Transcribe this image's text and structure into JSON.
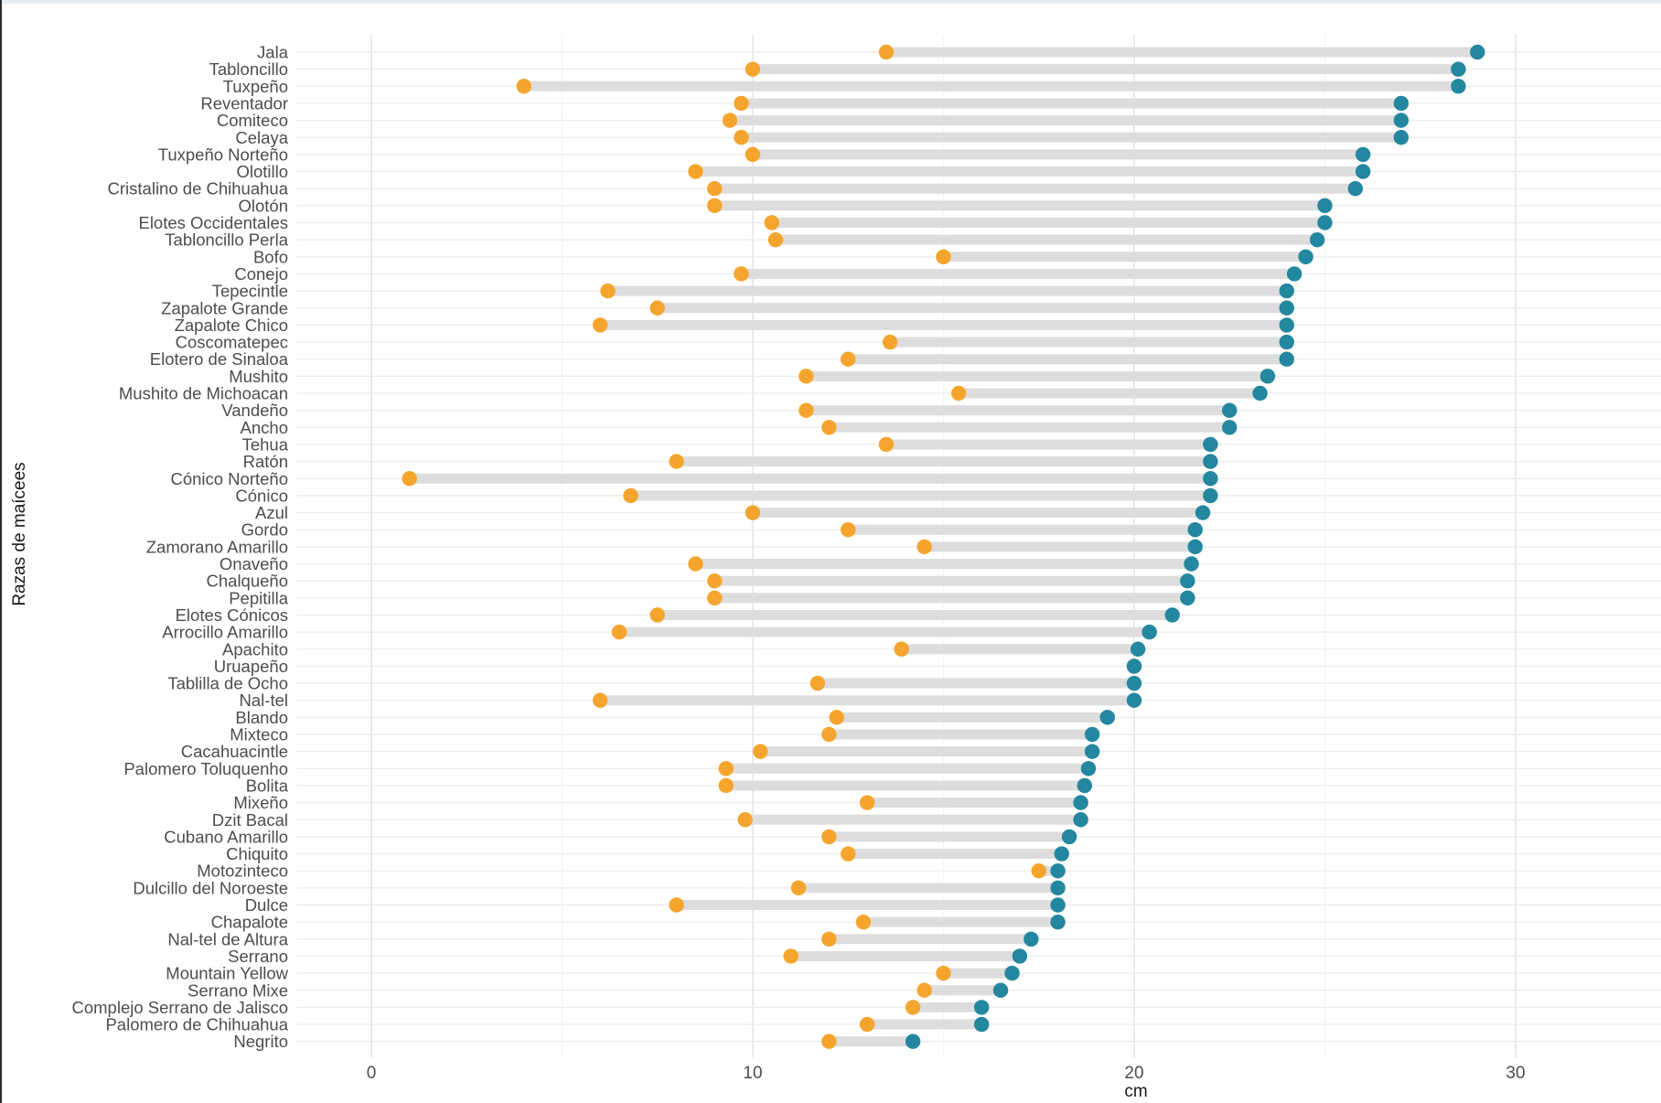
{
  "chart_data": {
    "type": "dumbbell",
    "xlabel": "cm",
    "ylabel": "Razas de maícees",
    "xlim": [
      -2,
      34
    ],
    "x_ticks": [
      0,
      10,
      20,
      30
    ],
    "colors": {
      "min": "#F5A52D",
      "max": "#23879F",
      "bar": "#DDDDDD",
      "grid": "#EBEBEB",
      "grid_minor": "#F4F4F4"
    },
    "categories": [
      "Jala",
      "Tabloncillo",
      "Tuxpeño",
      "Reventador",
      "Comiteco",
      "Celaya",
      "Tuxpeño Norteño",
      "Olotillo",
      "Cristalino de Chihuahua",
      "Olotón",
      "Elotes Occidentales",
      "Tabloncillo Perla",
      "Bofo",
      "Conejo",
      "Tepecintle",
      "Zapalote Grande",
      "Zapalote Chico",
      "Coscomatepec",
      "Elotero de Sinaloa",
      "Mushito",
      "Mushito de Michoacan",
      "Vandeño",
      "Ancho",
      "Tehua",
      "Ratón",
      "Cónico Norteño",
      "Cónico",
      "Azul",
      "Gordo",
      "Zamorano Amarillo",
      "Onaveño",
      "Chalqueño",
      "Pepitilla",
      "Elotes Cónicos",
      "Arrocillo Amarillo",
      "Apachito",
      "Uruapeño",
      "Tablilla de Ocho",
      "Nal-tel",
      "Blando",
      "Mixteco",
      "Cacahuacintle",
      "Palomero Toluquenho",
      "Bolita",
      "Mixeño",
      "Dzit Bacal",
      "Cubano Amarillo",
      "Chiquito",
      "Motozinteco",
      "Dulcillo del Noroeste",
      "Dulce",
      "Chapalote",
      "Nal-tel de Altura",
      "Serrano",
      "Mountain Yellow",
      "Serrano Mixe",
      "Complejo Serrano de Jalisco",
      "Palomero de Chihuahua",
      "Negrito"
    ],
    "min_values": [
      13.5,
      10.0,
      4.0,
      9.7,
      9.4,
      9.7,
      10.0,
      8.5,
      9.0,
      9.0,
      10.5,
      10.6,
      15.0,
      9.7,
      6.2,
      7.5,
      6.0,
      13.6,
      12.5,
      11.4,
      15.4,
      11.4,
      12.0,
      13.5,
      8.0,
      1.0,
      6.8,
      10.0,
      12.5,
      14.5,
      8.5,
      9.0,
      9.0,
      7.5,
      6.5,
      13.9,
      20.0,
      11.7,
      6.0,
      12.2,
      12.0,
      10.2,
      9.3,
      9.3,
      13.0,
      9.8,
      12.0,
      12.5,
      17.5,
      11.2,
      8.0,
      12.9,
      12.0,
      11.0,
      15.0,
      14.5,
      14.2,
      13.0,
      12.0
    ],
    "max_values": [
      29.0,
      28.5,
      28.5,
      27.0,
      27.0,
      27.0,
      26.0,
      26.0,
      25.8,
      25.0,
      25.0,
      24.8,
      24.5,
      24.2,
      24.0,
      24.0,
      24.0,
      24.0,
      24.0,
      23.5,
      23.3,
      22.5,
      22.5,
      22.0,
      22.0,
      22.0,
      22.0,
      21.8,
      21.6,
      21.6,
      21.5,
      21.4,
      21.4,
      21.0,
      20.4,
      20.1,
      20.0,
      20.0,
      20.0,
      19.3,
      18.9,
      18.9,
      18.8,
      18.7,
      18.6,
      18.6,
      18.3,
      18.1,
      18.0,
      18.0,
      18.0,
      18.0,
      17.3,
      17.0,
      16.8,
      16.5,
      16.0,
      16.0,
      14.2
    ]
  }
}
